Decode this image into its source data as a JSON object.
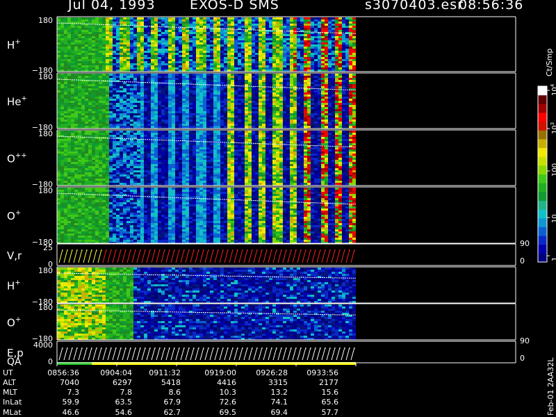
{
  "header": {
    "date": "Jul 04, 1993",
    "instrument": "EXOS-D SMS",
    "file": "s3070403.esr",
    "time": "08:56:36"
  },
  "chart_data": {
    "type": "heatmap",
    "title": "Jul 04, 1993   EXOS-D SMS",
    "panels": [
      {
        "label": "H",
        "sup": "+",
        "ymax": "180",
        "ymin": "−180",
        "type": "pitch-angle spectrogram"
      },
      {
        "label": "He",
        "sup": "+",
        "ymax": "180",
        "ymin": "−180",
        "type": "pitch-angle spectrogram"
      },
      {
        "label": "O",
        "sup": "++",
        "ymax": "180",
        "ymin": "−180",
        "type": "pitch-angle spectrogram"
      },
      {
        "label": "O",
        "sup": "+",
        "ymax": "180",
        "ymin": "−180",
        "type": "pitch-angle spectrogram"
      },
      {
        "label": "V,r",
        "sup": "",
        "ymax": "25",
        "ymin": "0",
        "right_max": "90",
        "right_min": "0",
        "type": "line"
      },
      {
        "label": "H",
        "sup": "+",
        "ymax": "180",
        "ymin": "−180",
        "type": "spectrogram"
      },
      {
        "label": "O",
        "sup": "+",
        "ymax": "180",
        "ymin": "−180",
        "type": "spectrogram"
      },
      {
        "label": "E,p",
        "label2": "QA",
        "sup": "",
        "ymax": "4000",
        "ymin": "0",
        "right_max": "90",
        "right_min": "0",
        "type": "line"
      }
    ],
    "colorbar": {
      "unit": "Ct/Smp",
      "scale": "log",
      "ticks": [
        "1",
        "10",
        "100",
        "10^3",
        "10^4"
      ],
      "colors": [
        "#00007c",
        "#0000aa",
        "#0a28c8",
        "#0b5fd2",
        "#0e96d2",
        "#10c0c8",
        "#20b488",
        "#109a30",
        "#20b020",
        "#40c818",
        "#88d800",
        "#c8e000",
        "#f0e800",
        "#c8b000",
        "#987000",
        "#d01000",
        "#ff0000",
        "#a00000",
        "#600000",
        "#ffffff"
      ]
    },
    "x_axis": {
      "rows": [
        {
          "name": "UT",
          "values": [
            "0856:36",
            "0904:04",
            "0911:32",
            "0919:00",
            "0926:28",
            "0933:56"
          ]
        },
        {
          "name": "ALT",
          "values": [
            "7040",
            "6297",
            "5418",
            "4416",
            "3315",
            "2177"
          ]
        },
        {
          "name": "MLT",
          "values": [
            "7.3",
            "7.8",
            "8.6",
            "10.3",
            "13.2",
            "15.6"
          ]
        },
        {
          "name": "InLat",
          "values": [
            "59.9",
            "63.5",
            "67.9",
            "72.6",
            "74.1",
            "65.6"
          ]
        },
        {
          "name": "MLat",
          "values": [
            "46.6",
            "54.6",
            "62.7",
            "69.5",
            "69.4",
            "57.7"
          ]
        }
      ]
    },
    "side_label": "Feb-01 2AA32L"
  }
}
